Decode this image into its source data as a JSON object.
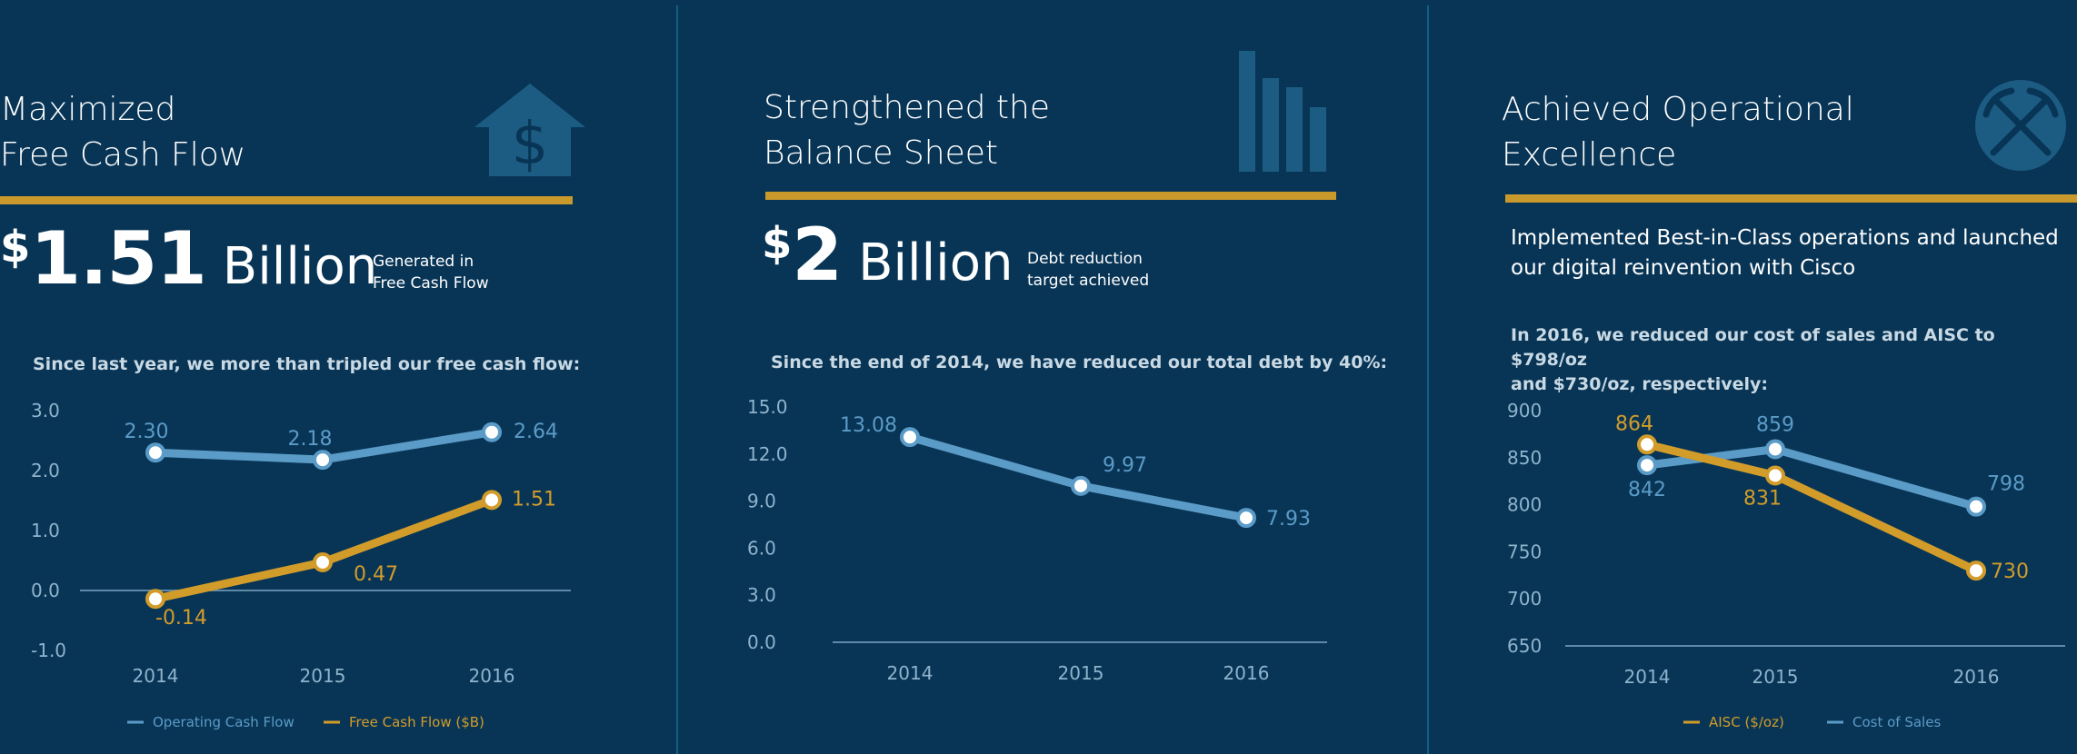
{
  "colors": {
    "background": "#083556",
    "blue_series": "#5b9bc7",
    "gold_series": "#d29c2a",
    "axis_text": "#8fb3cc",
    "zero_line": "#5e89a8",
    "icon": "#1d5c82"
  },
  "panels": [
    {
      "title": "Maximized\nFree Cash Flow",
      "icon": "house-dollar-icon",
      "headline": {
        "symbol": "$",
        "value": "1.51",
        "unit": "Billion",
        "note": "Generated in\nFree Cash Flow"
      },
      "caption": "Since last year, we more than tripled our free cash flow:"
    },
    {
      "title": "Strengthened the\nBalance Sheet",
      "icon": "bar-chart-icon",
      "headline": {
        "symbol": "$",
        "value": "2",
        "unit": "Billion",
        "note": "Debt reduction\ntarget achieved"
      },
      "caption": "Since the end of 2014, we have reduced our total debt by 40%:"
    },
    {
      "title": "Achieved Operational\nExcellence",
      "icon": "crossed-pickaxes-icon",
      "lead": "Implemented Best-in-Class operations and launched\nour digital reinvention with Cisco",
      "caption": "In 2016, we reduced our cost of sales and AISC to $798/oz\nand $730/oz, respectively:"
    }
  ],
  "chart_data": [
    {
      "type": "line",
      "x": [
        "2014",
        "2015",
        "2016"
      ],
      "ylim": [
        -1.0,
        3.0
      ],
      "yticks": [
        "3.0",
        "2.0",
        "1.0",
        "0.0",
        "-1.0"
      ],
      "series": [
        {
          "name": "Operating Cash Flow",
          "values": [
            2.3,
            2.18,
            2.64
          ],
          "labels": [
            "2.30",
            "2.18",
            "2.64"
          ],
          "color": "#5b9bc7"
        },
        {
          "name": "Free Cash Flow ($B)",
          "values": [
            -0.14,
            0.47,
            1.51
          ],
          "labels": [
            "-0.14",
            "0.47",
            "1.51"
          ],
          "color": "#d29c2a"
        }
      ],
      "legend": "bottom"
    },
    {
      "type": "line",
      "x": [
        "2014",
        "2015",
        "2016"
      ],
      "ylim": [
        0.0,
        15.0
      ],
      "yticks": [
        "15.0",
        "12.0",
        "9.0",
        "6.0",
        "3.0",
        "0.0"
      ],
      "series": [
        {
          "values": [
            13.08,
            9.97,
            7.93
          ],
          "labels": [
            "13.08",
            "9.97",
            "7.93"
          ],
          "color": "#5b9bc7"
        }
      ]
    },
    {
      "type": "line",
      "x": [
        "2014",
        "2015",
        "2016"
      ],
      "ylim": [
        650,
        900
      ],
      "yticks": [
        "900",
        "850",
        "800",
        "750",
        "700",
        "650"
      ],
      "series": [
        {
          "name": "Cost of Sales",
          "values": [
            842,
            859,
            798
          ],
          "labels": [
            "842",
            "859",
            "798"
          ],
          "color": "#5b9bc7"
        },
        {
          "name": "AISC ($/oz)",
          "values": [
            864,
            831,
            730
          ],
          "labels": [
            "864",
            "831",
            "730"
          ],
          "color": "#d29c2a"
        }
      ],
      "legend": "bottom"
    }
  ]
}
